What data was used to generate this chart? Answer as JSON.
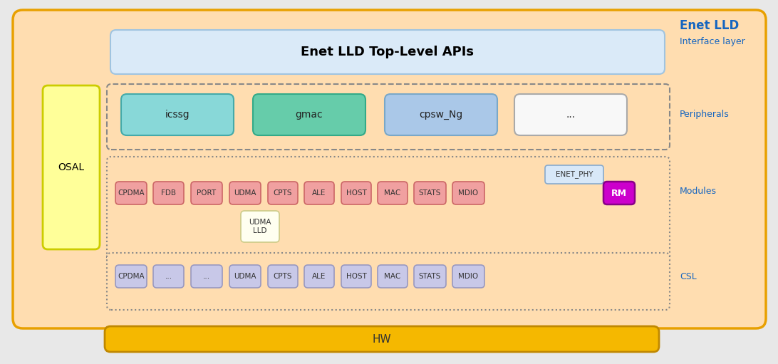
{
  "bg_outer": "#e8e8e8",
  "bg_main": "#ffddb0",
  "bg_main_border": "#e8a000",
  "title_enet_lld": "Enet LLD",
  "title_interface": "Interface layer",
  "title_peripherals": "Peripherals",
  "title_modules": "Modules",
  "title_csl": "CSL",
  "label_color": "#1565c0",
  "api_box_color": "#daeaf8",
  "api_box_border": "#a0c4e0",
  "api_label": "Enet LLD Top-Level APIs",
  "osal_bg": "#ffff99",
  "osal_border": "#cccc00",
  "osal_label": "OSAL",
  "hw_bg": "#f5b800",
  "hw_border": "#c08800",
  "hw_label": "HW",
  "icssg_color": "#88d8d8",
  "icssg_border": "#44aaaa",
  "gmac_color": "#66ccaa",
  "gmac_border": "#33aa88",
  "cpsw_color": "#aac8e8",
  "cpsw_border": "#7aa8c8",
  "dot_empty_bg": "#f8f8f8",
  "dot_empty_border": "#aaaaaa",
  "enet_phy_bg": "#d8e8f8",
  "enet_phy_border": "#88aacc",
  "module_red_bg": "#f0a0a0",
  "module_red_border": "#cc6666",
  "rm_bg": "#cc00cc",
  "rm_border": "#880088",
  "rm_text": "#ffffff",
  "udma_lld_bg": "#fffff0",
  "udma_lld_border": "#cccc88",
  "csl_box_bg": "#c8c8e8",
  "csl_box_border": "#9898c0",
  "periph_labels": [
    "icssg",
    "gmac",
    "cpsw_Ng",
    "..."
  ],
  "module_labels": [
    "CPDMA",
    "FDB",
    "PORT",
    "UDMA",
    "CPTS",
    "ALE",
    "HOST",
    "MAC",
    "STATS",
    "MDIO",
    "RM"
  ],
  "csl_labels": [
    "CPDMA",
    "...",
    "...",
    "UDMA",
    "CPTS",
    "ALE",
    "HOST",
    "MAC",
    "STATS",
    "MDIO"
  ]
}
